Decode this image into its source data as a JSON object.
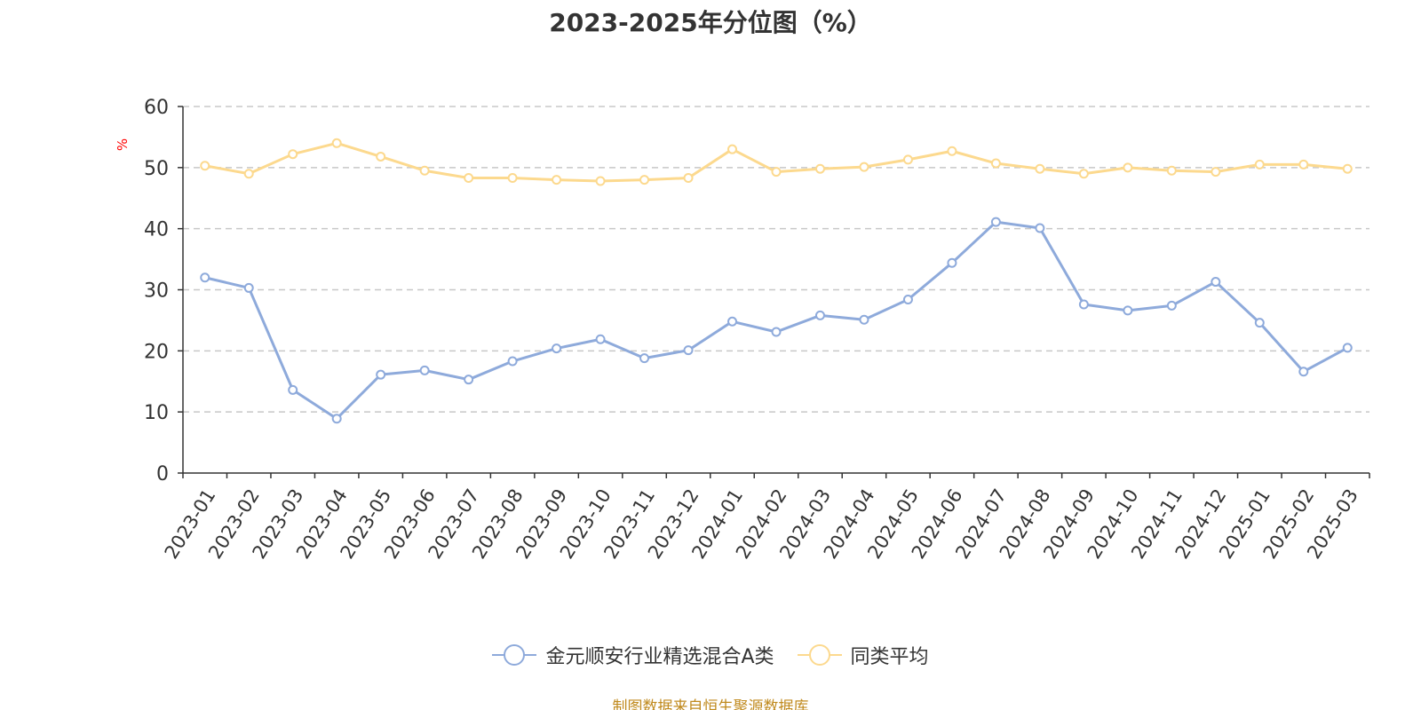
{
  "title": "2023-2025年分位图（%）",
  "source": "制图数据来自恒生聚源数据库",
  "chart_data": {
    "type": "line",
    "title": "2023-2025年分位图（%）",
    "ylabel": "%",
    "xlabel": "",
    "ylim": [
      0,
      60
    ],
    "yticks": [
      0,
      10,
      20,
      30,
      40,
      50,
      60
    ],
    "grid": true,
    "legend_position": "bottom-center",
    "categories": [
      "2023-01",
      "2023-02",
      "2023-03",
      "2023-04",
      "2023-05",
      "2023-06",
      "2023-07",
      "2023-08",
      "2023-09",
      "2023-10",
      "2023-11",
      "2023-12",
      "2024-01",
      "2024-02",
      "2024-03",
      "2024-04",
      "2024-05",
      "2024-06",
      "2024-07",
      "2024-08",
      "2024-09",
      "2024-10",
      "2024-11",
      "2024-12",
      "2025-01",
      "2025-02",
      "2025-03"
    ],
    "series": [
      {
        "name": "金元顺安行业精选混合A类",
        "color": "#8eaadb",
        "values": [
          32.0,
          30.3,
          13.6,
          8.9,
          16.1,
          16.8,
          15.3,
          18.3,
          20.4,
          21.9,
          18.8,
          20.1,
          24.8,
          23.1,
          25.8,
          25.1,
          28.4,
          34.4,
          41.1,
          40.1,
          27.6,
          26.6,
          27.4,
          31.3,
          24.6,
          16.6,
          20.5
        ]
      },
      {
        "name": "同类平均",
        "color": "#fcd98e",
        "values": [
          50.3,
          49.0,
          52.2,
          54.0,
          51.8,
          49.5,
          48.3,
          48.3,
          48.0,
          47.8,
          48.0,
          48.3,
          53.0,
          49.3,
          49.8,
          50.1,
          51.3,
          52.7,
          50.7,
          49.8,
          49.0,
          50.0,
          49.5,
          49.3,
          50.5,
          50.5,
          49.8
        ]
      }
    ]
  }
}
